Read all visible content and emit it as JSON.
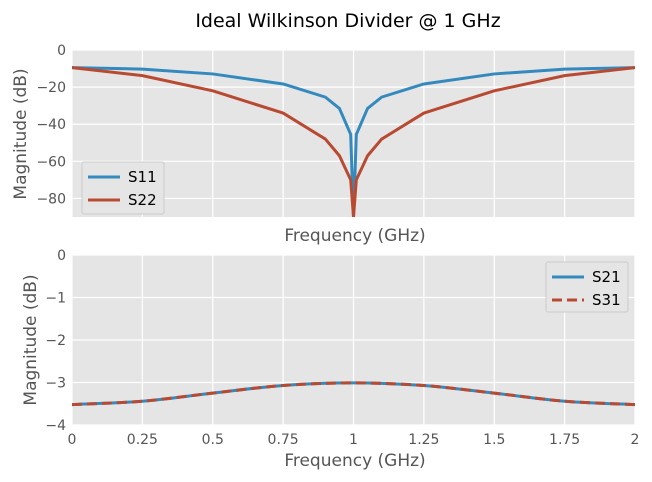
{
  "figure": {
    "title": "Ideal Wilkinson Divider @ 1 GHz"
  },
  "chart_data": [
    {
      "type": "line",
      "title": "",
      "xlabel": "Frequency (GHz)",
      "ylabel": "Magnitude (dB)",
      "xlim": [
        0,
        2
      ],
      "ylim": [
        -90,
        0
      ],
      "yticks": [
        0,
        -20,
        -40,
        -60,
        -80
      ],
      "ytick_labels": [
        "0",
        "−20",
        "−40",
        "−60",
        "−80"
      ],
      "xtick_labels_visible": false,
      "grid": true,
      "legend": "lower-left",
      "x": [
        0,
        0.25,
        0.5,
        0.75,
        0.9,
        0.95,
        0.99,
        1.0,
        1.01,
        1.05,
        1.1,
        1.25,
        1.5,
        1.75,
        2.0
      ],
      "series": [
        {
          "name": "S11",
          "color": "#348abd",
          "values": [
            -9.5,
            -10.3,
            -12.9,
            -18.3,
            -25.4,
            -31.5,
            -45.5,
            -90,
            -45.5,
            -31.5,
            -25.4,
            -18.3,
            -12.9,
            -10.3,
            -9.5
          ]
        },
        {
          "name": "S22",
          "color": "#b94a32",
          "values": [
            -9.5,
            -13.8,
            -22.0,
            -34.0,
            -48.0,
            -57.0,
            -70.0,
            -90,
            -70.0,
            -57.0,
            -48.0,
            -34.0,
            -22.0,
            -13.8,
            -9.5
          ]
        }
      ]
    },
    {
      "type": "line",
      "title": "",
      "xlabel": "Frequency (GHz)",
      "ylabel": "Magnitude (dB)",
      "xlim": [
        0,
        2
      ],
      "ylim": [
        -4,
        0
      ],
      "xticks": [
        0,
        0.25,
        0.5,
        0.75,
        1,
        1.25,
        1.5,
        1.75,
        2
      ],
      "xtick_labels": [
        "0",
        "0.25",
        "0.5",
        "0.75",
        "1",
        "1.25",
        "1.5",
        "1.75",
        "2"
      ],
      "yticks": [
        0,
        -1,
        -2,
        -3,
        -4
      ],
      "ytick_labels": [
        "0",
        "−1",
        "−2",
        "−3",
        "−4"
      ],
      "grid": true,
      "legend": "top-right",
      "x": [
        0,
        0.25,
        0.5,
        0.75,
        1.0,
        1.25,
        1.5,
        1.75,
        2.0
      ],
      "series": [
        {
          "name": "S21",
          "color": "#348abd",
          "dashed": false,
          "values": [
            -3.52,
            -3.44,
            -3.25,
            -3.07,
            -3.01,
            -3.07,
            -3.25,
            -3.44,
            -3.52
          ]
        },
        {
          "name": "S31",
          "color": "#b94a32",
          "dashed": true,
          "values": [
            -3.52,
            -3.44,
            -3.25,
            -3.07,
            -3.01,
            -3.07,
            -3.25,
            -3.44,
            -3.52
          ]
        }
      ]
    }
  ]
}
